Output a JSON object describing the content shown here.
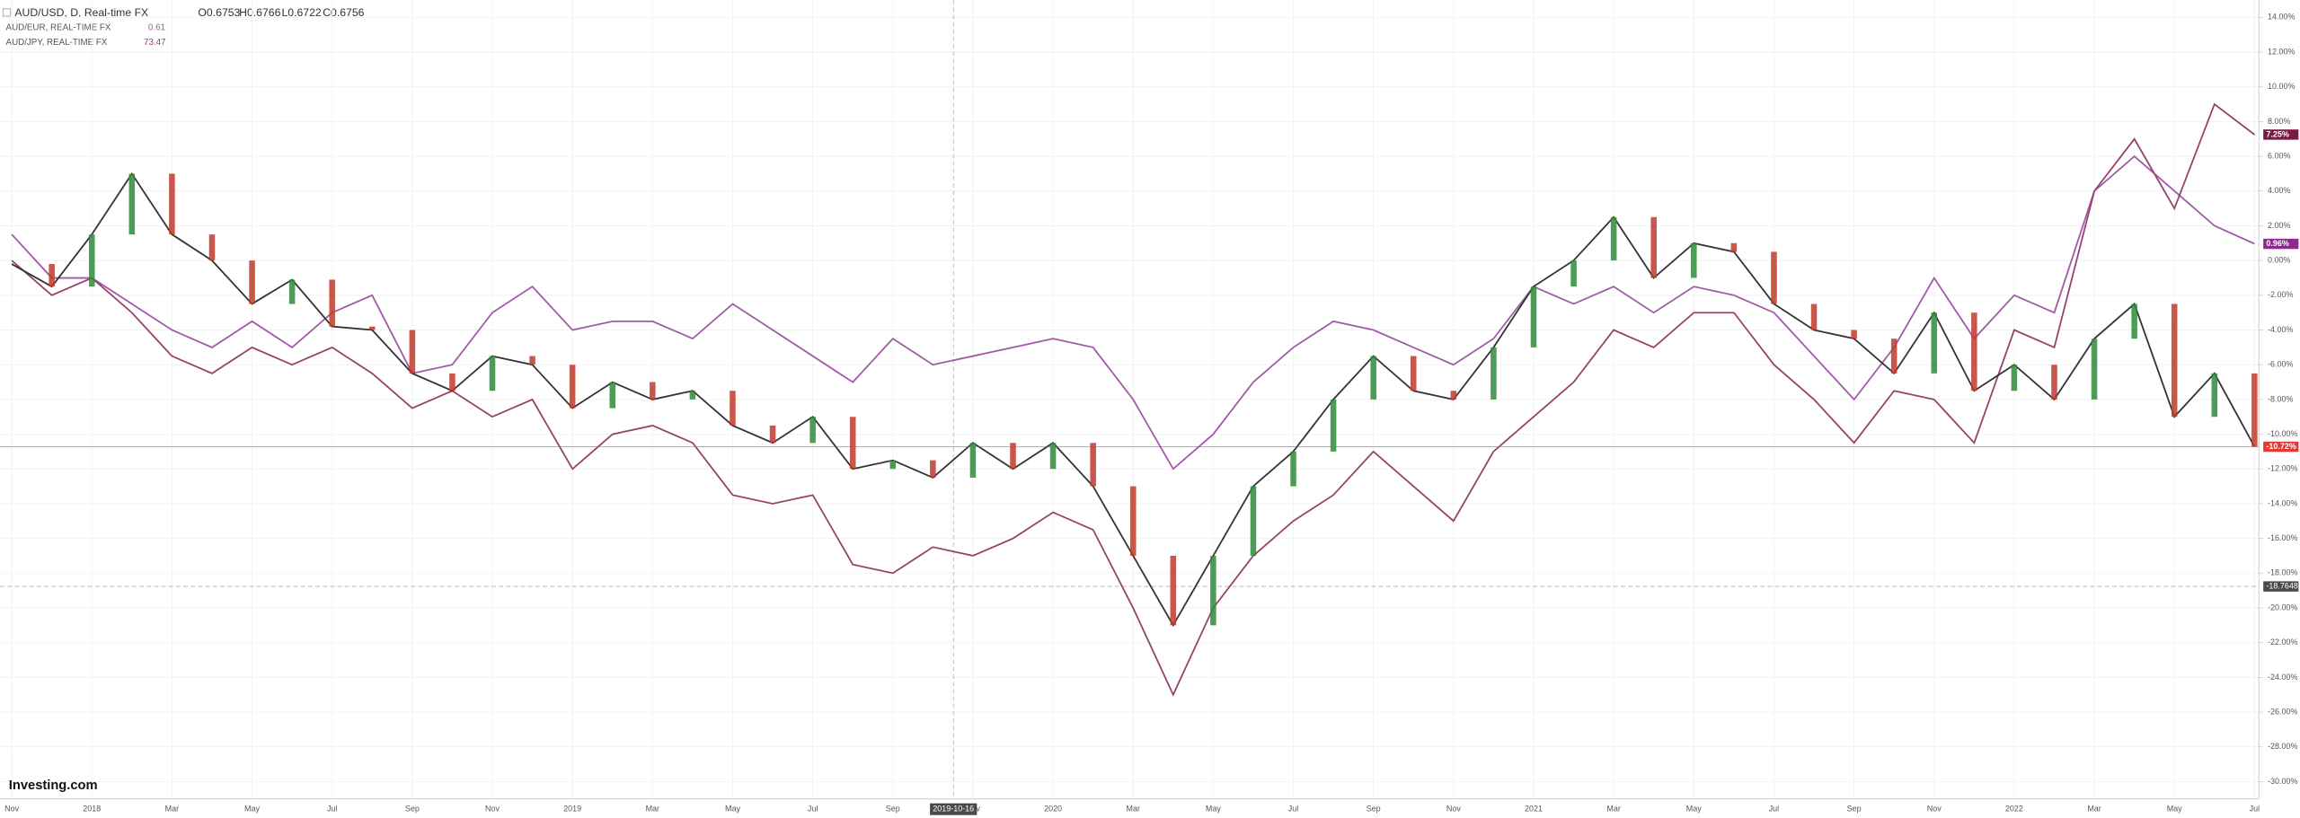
{
  "chart_data": {
    "type": "line",
    "title": "AUD/USD, D, Real-time FX",
    "ohlc": [
      "O0.6753",
      "H0.6766",
      "L0.6722",
      "C0.6756"
    ],
    "logo": "Investing.com",
    "categories": [
      "Nov",
      null,
      "2018",
      null,
      "Mar",
      null,
      "May",
      null,
      "Jul",
      null,
      "Sep",
      null,
      "Nov",
      null,
      "2019",
      null,
      "Mar",
      null,
      "May",
      null,
      "Jul",
      null,
      "Sep",
      null,
      "Nov",
      null,
      "2020",
      null,
      "Mar",
      null,
      "May",
      null,
      "Jul",
      null,
      "Sep",
      null,
      "Nov",
      null,
      "2021",
      null,
      "Mar",
      null,
      "May",
      null,
      "Jul",
      null,
      "Sep",
      null,
      "Nov",
      null,
      "2022",
      null,
      "Mar",
      null,
      "May",
      null,
      "Jul"
    ],
    "series": [
      {
        "name": "AUD/USD",
        "style": "candles",
        "color": "#333333",
        "up_color": "#2e8b3a",
        "down_color": "#c0392b",
        "last_label": "-10.72%",
        "last_color": "#e53935",
        "values": [
          -0.2,
          -1.5,
          1.5,
          5.0,
          1.5,
          0,
          -2.5,
          -1.1,
          -3.8,
          -4,
          -6.5,
          -7.5,
          -5.5,
          -6,
          -8.5,
          -7,
          -8,
          -7.5,
          -9.5,
          -10.5,
          -9,
          -12,
          -11.5,
          -12.5,
          -10.5,
          -12,
          -10.5,
          -13,
          -17,
          -21,
          -17,
          -13,
          -11,
          -8,
          -5.5,
          -7.5,
          -8,
          -5,
          -1.5,
          0,
          2.5,
          -1,
          1,
          0.5,
          -2.5,
          -4,
          -4.5,
          -6.5,
          -3,
          -7.5,
          -6,
          -8,
          -4.5,
          -2.5,
          -9,
          -6.5,
          -10.72
        ]
      },
      {
        "name": "AUD/EUR, REAL-TIME FX",
        "legend_value": "0.61",
        "color": "#a05aa8",
        "last_label": "0.96%",
        "last_color": "#8e2a8e",
        "values": [
          1.5,
          -1,
          -1,
          -2.5,
          -4,
          -5,
          -3.5,
          -5,
          -3,
          -2,
          -6.5,
          -6,
          -3,
          -1.5,
          -4,
          -3.5,
          -3.5,
          -4.5,
          -2.5,
          -4,
          -5.5,
          -7,
          -4.5,
          -6,
          -5.5,
          -5,
          -4.5,
          -5,
          -8,
          -12,
          -10,
          -7,
          -5,
          -3.5,
          -4,
          -5,
          -6,
          -4.5,
          -1.5,
          -2.5,
          -1.5,
          -3,
          -1.5,
          -2,
          -3,
          -5.5,
          -8,
          -5,
          -1,
          -4.5,
          -2,
          -3,
          4,
          6,
          4,
          2,
          0.96
        ]
      },
      {
        "name": "AUD/JPY, REAL-TIME FX",
        "legend_value": "73.47",
        "color": "#94436e",
        "last_label": "7.25%",
        "last_color": "#7a1a45",
        "values": [
          0,
          -2,
          -1,
          -3,
          -5.5,
          -6.5,
          -5,
          -6,
          -5,
          -6.5,
          -8.5,
          -7.5,
          -9,
          -8,
          -12,
          -10,
          -9.5,
          -10.5,
          -13.5,
          -14,
          -13.5,
          -17.5,
          -18,
          -16.5,
          -17,
          -16,
          -14.5,
          -15.5,
          -20,
          -25,
          -20,
          -17,
          -15,
          -13.5,
          -11,
          -13,
          -15,
          -11,
          -9,
          -7,
          -4,
          -5,
          -3,
          -3,
          -6,
          -8,
          -10.5,
          -7.5,
          -8,
          -10.5,
          -4,
          -5,
          4,
          7,
          3,
          9,
          7.25
        ]
      }
    ],
    "ylim": [
      -31,
      15
    ],
    "yticks": [
      {
        "value": 14,
        "label": "14.00%"
      },
      {
        "value": 12,
        "label": "12.00%"
      },
      {
        "value": 10,
        "label": "10.00%"
      },
      {
        "value": 8,
        "label": "8.00%"
      },
      {
        "value": 6,
        "label": "6.00%"
      },
      {
        "value": 4,
        "label": "4.00%"
      },
      {
        "value": 2,
        "label": "2.00%"
      },
      {
        "value": 0,
        "label": "0.00%"
      },
      {
        "value": -2,
        "label": "-2.00%"
      },
      {
        "value": -4,
        "label": "-4.00%"
      },
      {
        "value": -6,
        "label": "-6.00%"
      },
      {
        "value": -8,
        "label": "-8.00%"
      },
      {
        "value": -10,
        "label": "-10.00%"
      },
      {
        "value": -12,
        "label": "-12.00%"
      },
      {
        "value": -14,
        "label": "-14.00%"
      },
      {
        "value": -16,
        "label": "-16.00%"
      },
      {
        "value": -18,
        "label": "-18.00%"
      },
      {
        "value": -20,
        "label": "-20.00%"
      },
      {
        "value": -22,
        "label": "-22.00%"
      },
      {
        "value": -24,
        "label": "-24.00%"
      },
      {
        "value": -26,
        "label": "-26.00%"
      },
      {
        "value": -28,
        "label": "-28.00%"
      },
      {
        "value": -30,
        "label": "-30.00%"
      }
    ],
    "grid": true,
    "crosshair": {
      "y": -18.7648,
      "x_label": "2019-10-16"
    }
  }
}
